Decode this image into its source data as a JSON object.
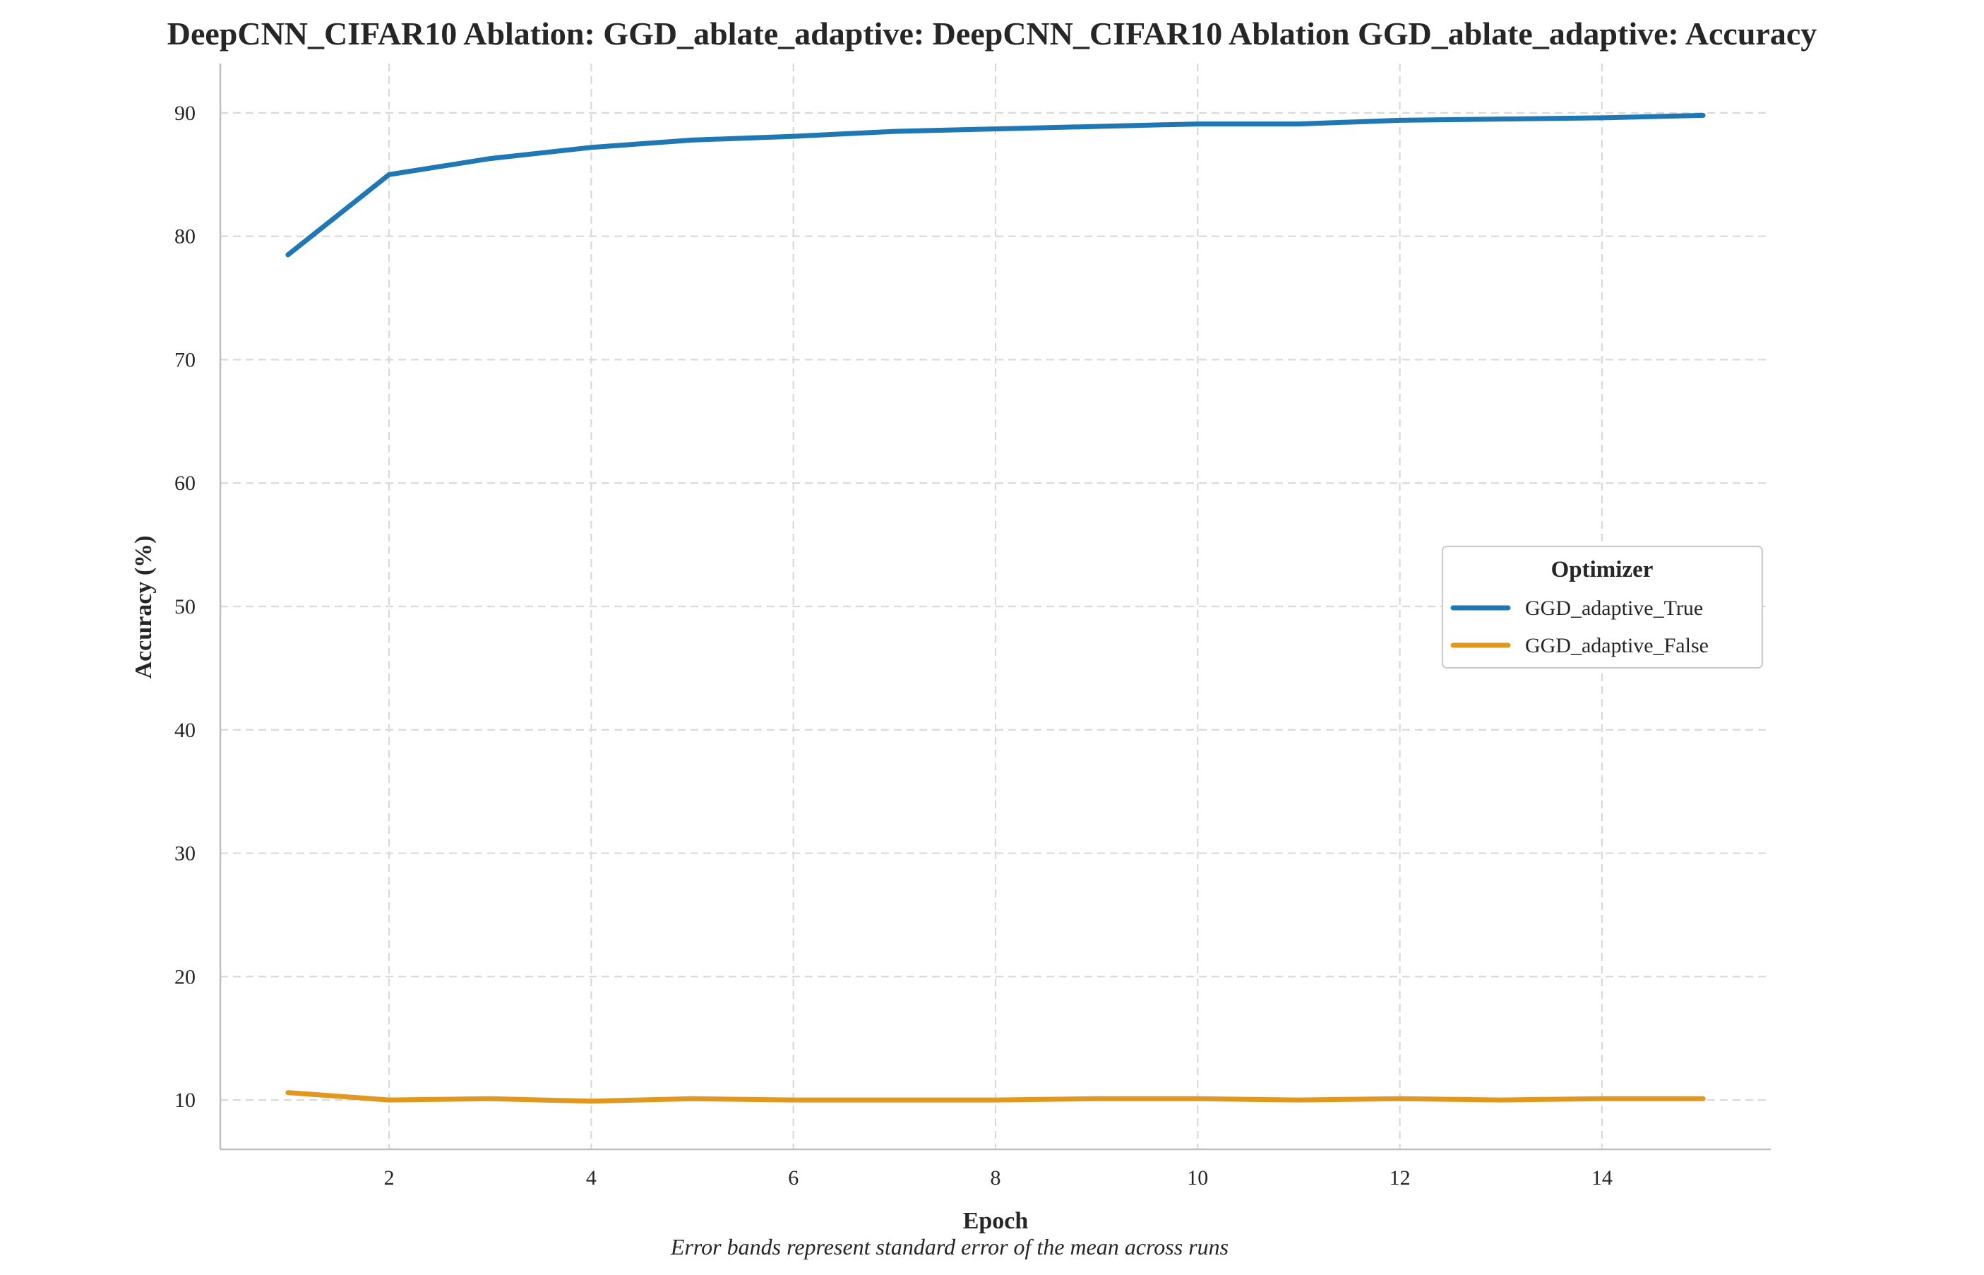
{
  "chart_data": {
    "type": "line",
    "title": "DeepCNN_CIFAR10 Ablation: GGD_ablate_adaptive: DeepCNN_CIFAR10 Ablation GGD_ablate_adaptive: Accuracy",
    "xlabel": "Epoch",
    "ylabel": "Accuracy (%)",
    "caption": "Error bands represent standard error of the mean across runs",
    "xlim": [
      0.33,
      15.67
    ],
    "ylim": [
      6,
      94
    ],
    "xticks": [
      2,
      4,
      6,
      8,
      10,
      12,
      14
    ],
    "yticks": [
      10,
      20,
      30,
      40,
      50,
      60,
      70,
      80,
      90
    ],
    "grid": true,
    "legend": {
      "title": "Optimizer",
      "placement": "center-right"
    },
    "x": [
      1,
      2,
      3,
      4,
      5,
      6,
      7,
      8,
      9,
      10,
      11,
      12,
      13,
      14,
      15
    ],
    "series": [
      {
        "name": "GGD_adaptive_True",
        "color": "#1f77b4",
        "values": [
          78.5,
          85.0,
          86.3,
          87.2,
          87.8,
          88.1,
          88.5,
          88.7,
          88.9,
          89.1,
          89.1,
          89.4,
          89.5,
          89.6,
          89.8
        ]
      },
      {
        "name": "GGD_adaptive_False",
        "color": "#e2971f",
        "values": [
          10.6,
          10.0,
          10.1,
          9.9,
          10.1,
          10.0,
          10.0,
          10.0,
          10.1,
          10.1,
          10.0,
          10.1,
          10.0,
          10.1,
          10.1
        ]
      }
    ]
  }
}
